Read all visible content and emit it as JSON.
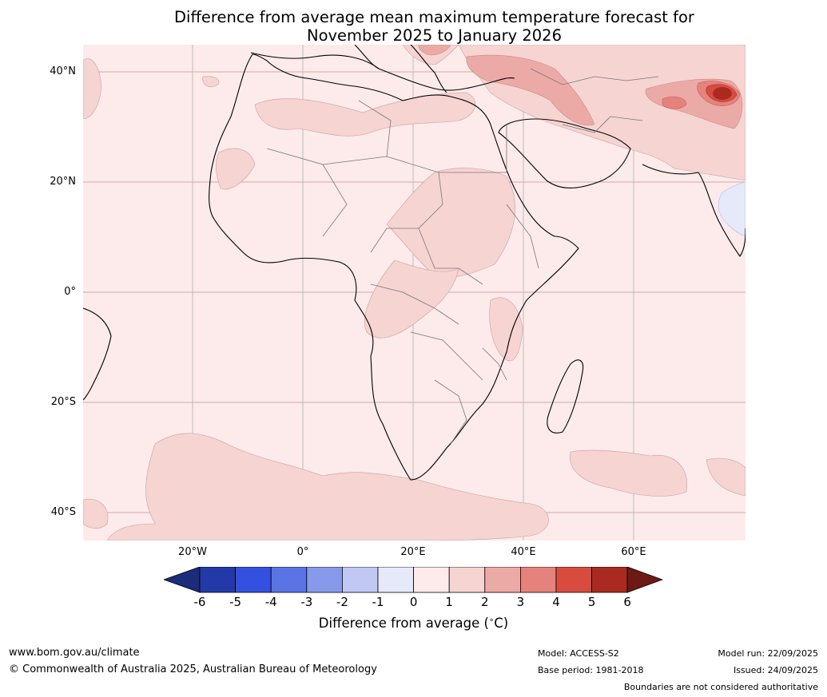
{
  "title": {
    "line1": "Difference from average mean maximum temperature forecast for",
    "line2": "November 2025 to January 2026"
  },
  "map": {
    "region": "Africa",
    "latitude_labels": [
      "40°N",
      "20°N",
      "0°",
      "20°S",
      "40°S"
    ],
    "longitude_labels": [
      "20°W",
      "0°",
      "20°E",
      "40°E",
      "60°E"
    ]
  },
  "colorbar": {
    "label": "Difference from average ($^\\circ$C)",
    "label_display": "Difference from average (",
    "label_unit": "C)",
    "ticks": [
      "-6",
      "-5",
      "-4",
      "-3",
      "-2",
      "-1",
      "0",
      "1",
      "2",
      "3",
      "4",
      "5",
      "6"
    ],
    "colors": [
      "#2439a8",
      "#3450e0",
      "#5a74e6",
      "#8799ea",
      "#c0c8f3",
      "#e6e9fa",
      "#fcebea",
      "#f6d4d2",
      "#ecaaa6",
      "#e6827c",
      "#d84c40",
      "#aa2a22"
    ],
    "under_color": "#1b2c7a",
    "over_color": "#6e1a14"
  },
  "footer": {
    "website": "www.bom.gov.au/climate",
    "copyright": "© Commonwealth of Australia 2025, Australian Bureau of Meteorology",
    "model": "Model: ACCESS-S2",
    "base_period": "Base period: 1981-2018",
    "model_run": "Model run: 22/09/2025",
    "issued": "Issued: 24/09/2025",
    "disclaimer": "Boundaries are not considered authoritative"
  }
}
